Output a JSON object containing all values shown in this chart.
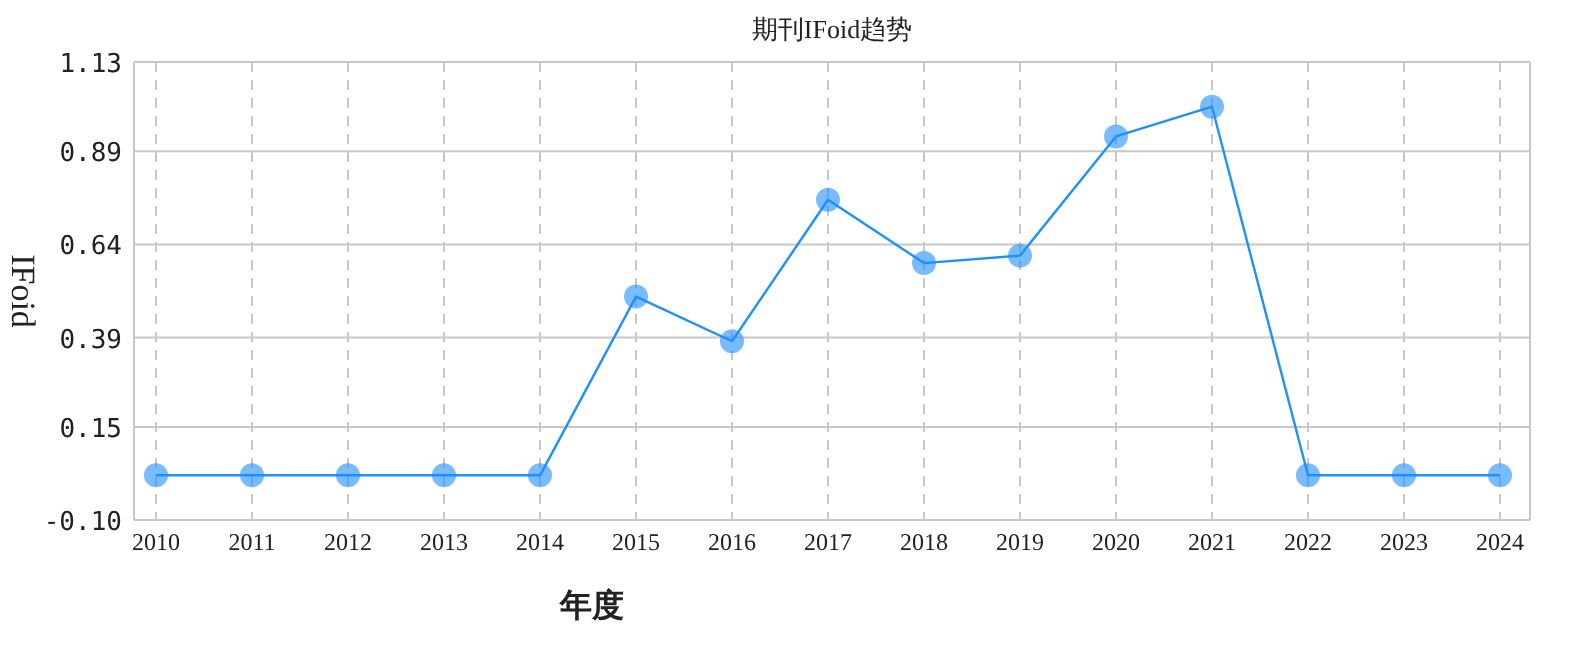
{
  "chart_data": {
    "type": "line",
    "title": "期刊IFoid趋势",
    "xlabel": "年度",
    "ylabel": "IFoid",
    "categories": [
      "2010",
      "2011",
      "2012",
      "2013",
      "2014",
      "2015",
      "2016",
      "2017",
      "2018",
      "2019",
      "2020",
      "2021",
      "2022",
      "2023",
      "2024"
    ],
    "series": [
      {
        "color": "#1e90ff",
        "values": [
          0.02,
          0.02,
          0.02,
          0.02,
          0.02,
          0.5,
          0.38,
          0.76,
          0.59,
          0.61,
          0.93,
          1.01,
          0.02,
          0.02,
          0.02
        ]
      }
    ],
    "ylim": [
      -0.1,
      1.13
    ],
    "yticks": [
      {
        "value": -0.1,
        "label": "-0.10"
      },
      {
        "value": 0.15,
        "label": "0.15"
      },
      {
        "value": 0.39,
        "label": "0.39"
      },
      {
        "value": 0.64,
        "label": "0.64"
      },
      {
        "value": 0.89,
        "label": "0.89"
      },
      {
        "value": 1.13,
        "label": "1.13"
      }
    ],
    "grid": true,
    "marker": "circle",
    "line_style": "solid"
  }
}
